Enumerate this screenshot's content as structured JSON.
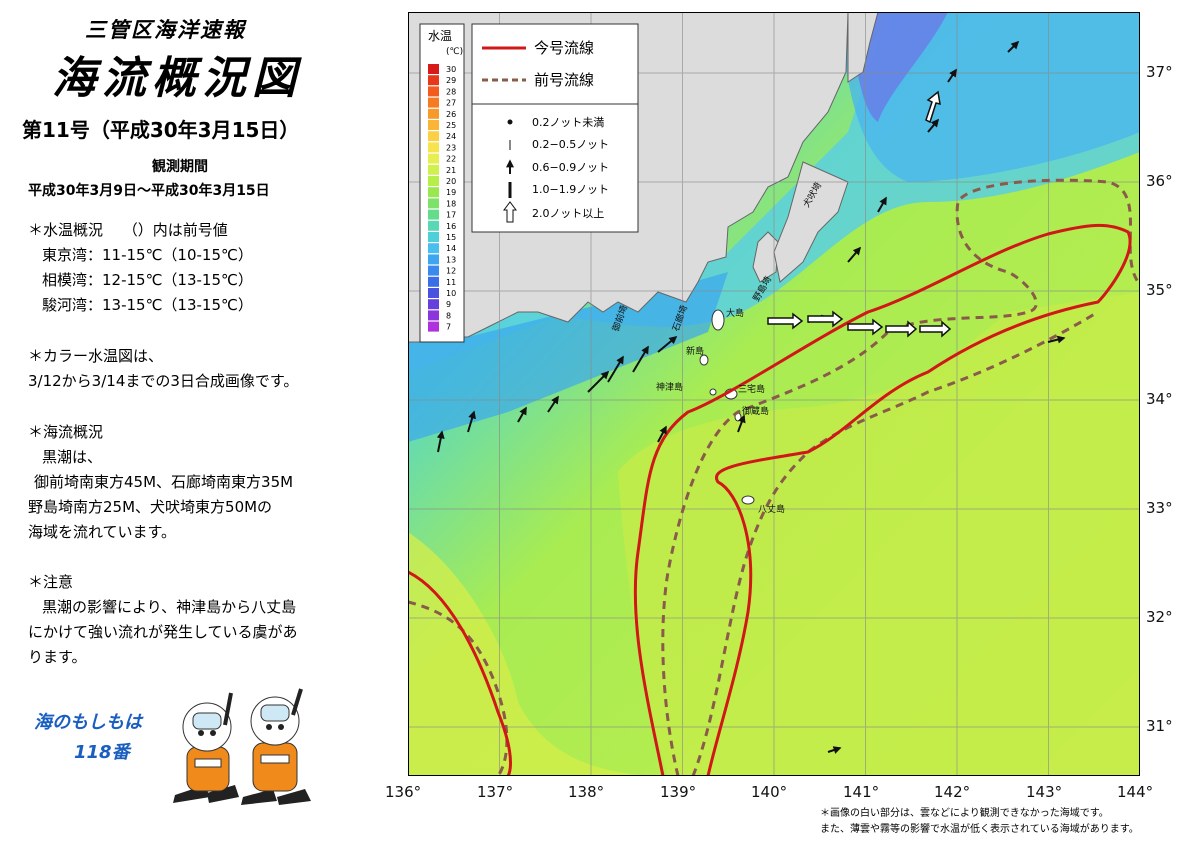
{
  "header": {
    "office": "三管区海洋速報",
    "title": "海流概況図",
    "issue": "第11号（平成30年3月15日）",
    "obs_label": "観測期間",
    "obs_range": "平成30年3月9日〜平成30年3月15日"
  },
  "temp_summary": {
    "heading": "＊水温概況　 （）内は前号値",
    "rows": [
      "東京湾：11-15℃（10-15℃）",
      "相模湾：12-15℃（13-15℃）",
      "駿河湾：13-15℃（13-15℃）"
    ]
  },
  "color_note": {
    "heading": "＊カラー水温図は、",
    "body": "3/12から3/14までの3日合成画像です。"
  },
  "current_summary": {
    "heading": "＊海流概況",
    "lines": [
      "黒潮は、",
      "御前埼南東方45M、石廊埼南東方35M",
      "野島埼南方25M、犬吠埼東方50Mの",
      "海域を流れています。"
    ]
  },
  "caution": {
    "heading": "＊注意",
    "lines": [
      "黒潮の影響により、神津島から八丈島",
      "にかけて強い流れが発生している虞があ",
      "ります。"
    ]
  },
  "mascot": {
    "line1": "海のもしもは",
    "line2": "118番"
  },
  "legend_temp": {
    "title": "水温",
    "unit": "(℃)",
    "labels": [
      "30",
      "29",
      "28",
      "27",
      "26",
      "25",
      "24",
      "23",
      "22",
      "21",
      "20",
      "19",
      "18",
      "17",
      "16",
      "15",
      "14",
      "13",
      "12",
      "11",
      "10",
      "9",
      "8",
      "7"
    ],
    "colors": [
      "#d81a1a",
      "#e8381a",
      "#f25a1e",
      "#f57a22",
      "#f89a2a",
      "#fbb536",
      "#fcd044",
      "#f7e34e",
      "#e6ee52",
      "#d0f04e",
      "#b6ee4a",
      "#98e84e",
      "#7ee26a",
      "#64dc8c",
      "#58d8b4",
      "#4ed0d8",
      "#48bfee",
      "#3ea6f0",
      "#3a8aee",
      "#3a6ee8",
      "#4a52e0",
      "#6640dc",
      "#8a36dc",
      "#b032dc"
    ]
  },
  "legend_current": {
    "now_line": "今号流線",
    "prev_line": "前号流線",
    "speeds": [
      "0.2ノット未満",
      "0.2−0.5ノット",
      "0.6−0.9ノット",
      "1.0−1.9ノット",
      "2.0ノット以上"
    ]
  },
  "map_labels": {
    "inubo": "犬吠埼",
    "nojima": "野島埼",
    "irozaki": "石廊埼",
    "omaezaki": "御前埼",
    "oshima": "大島",
    "niijima": "新島",
    "kozu": "神津島",
    "miyake": "三宅島",
    "mikura": "御蔵島",
    "hachijo": "八丈島"
  },
  "lon_ticks": [
    "136°",
    "137°",
    "138°",
    "139°",
    "140°",
    "141°",
    "142°",
    "143°",
    "144°"
  ],
  "lat_ticks": [
    "37°",
    "36°",
    "35°",
    "34°",
    "33°",
    "32°",
    "31°"
  ],
  "footnote": {
    "line1": "＊画像の白い部分は、雲などにより観測できなかった海域です。",
    "line2": "また、薄雲や霧等の影響で水温が低く表示されている海域があります。"
  },
  "colors": {
    "current_now": "#d01818",
    "current_prev": "#8a5a4a",
    "land": "#dcdcdc"
  }
}
